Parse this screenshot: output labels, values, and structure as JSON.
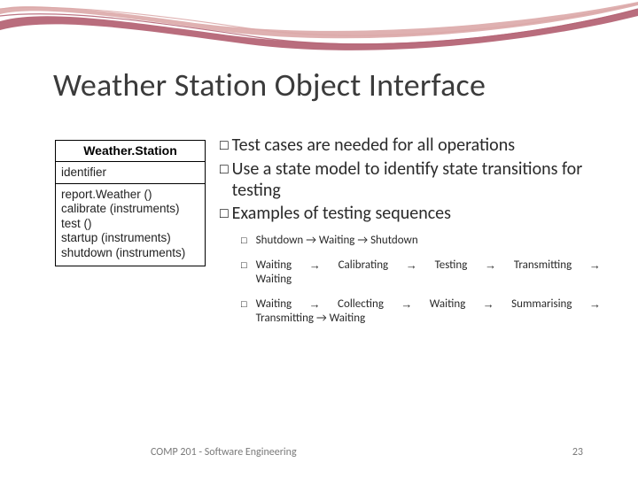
{
  "title": "Weather Station Object Interface",
  "uml": {
    "class_name": "Weather.Station",
    "attribute": "identifier",
    "operations": [
      "report.Weather ()",
      "calibrate (instruments)",
      "test ()",
      "startup (instruments)",
      "shutdown (instruments)"
    ]
  },
  "bullets": [
    "Test cases are needed for all operations",
    "Use a state model to identify state transitions for testing",
    "Examples of testing sequences"
  ],
  "sequences": [
    "Shutdown → Waiting → Shutdown",
    "Waiting → Calibrating → Testing → Transmitting → Waiting",
    "Waiting → Collecting → Waiting → Summarising → Transmitting → Waiting"
  ],
  "footer": {
    "left": "COMP 201 - Software Engineering",
    "page": "23"
  },
  "style": {
    "swoosh_outer": "#b56576",
    "swoosh_inner": "#dca8a8",
    "title_color": "#3b3b3b",
    "text_color": "#2a2a2a",
    "footer_color": "#7a7a7a",
    "bg": "#ffffff",
    "uml_border": "#000000",
    "title_fontsize": 36,
    "bullet_fontsize": 20,
    "sub_fontsize": 13,
    "footer_fontsize": 12
  }
}
